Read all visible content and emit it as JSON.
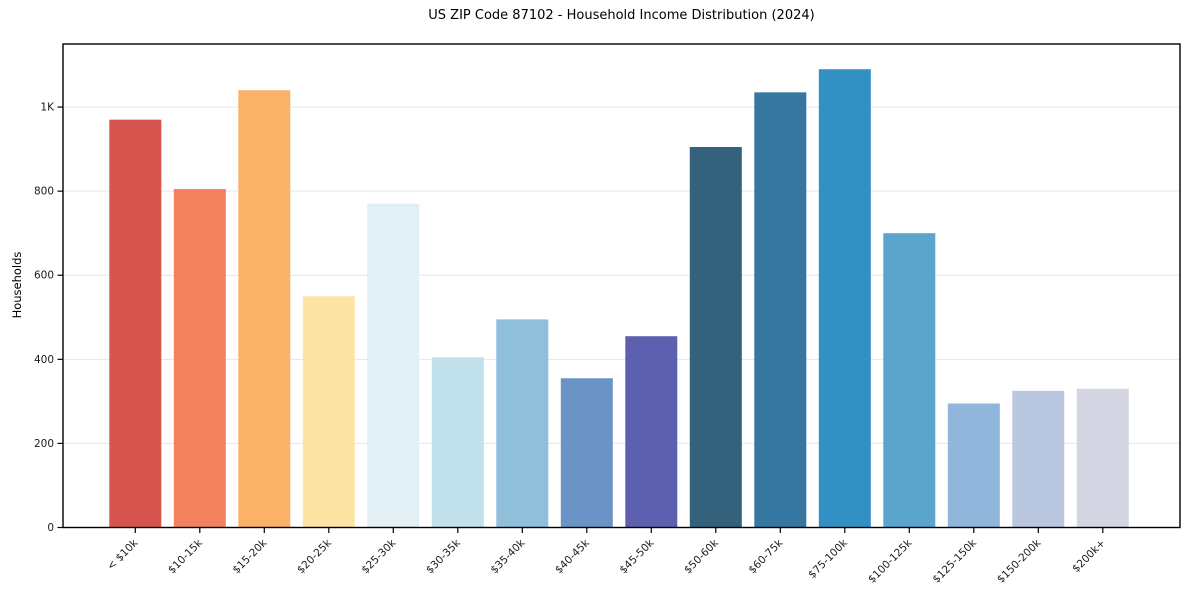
{
  "chart_data": {
    "type": "bar",
    "title": "US ZIP Code 87102 - Household Income Distribution (2024)",
    "xlabel": "",
    "ylabel": "Households",
    "categories": [
      "< $10k",
      "$10-15k",
      "$15-20k",
      "$20-25k",
      "$25-30k",
      "$30-35k",
      "$35-40k",
      "$40-45k",
      "$45-50k",
      "$50-60k",
      "$60-75k",
      "$75-100k",
      "$100-125k",
      "$125-150k",
      "$150-200k",
      "$200k+"
    ],
    "values": [
      970,
      805,
      1040,
      550,
      770,
      405,
      495,
      355,
      455,
      905,
      1035,
      1090,
      700,
      295,
      325,
      330
    ],
    "bar_colors": [
      "#d6564f",
      "#f4815e",
      "#fab269",
      "#fde3a4",
      "#e2eff5",
      "#c1e1ed",
      "#90bfdc",
      "#6b93c5",
      "#5c60ae",
      "#34617b",
      "#3577a1",
      "#3390c4",
      "#5ba4cc",
      "#90b7db",
      "#bac7e1",
      "#d4d6e4"
    ],
    "ytick_values": [
      0,
      200,
      400,
      600,
      800,
      1000
    ],
    "ytick_labels": [
      "0",
      "200",
      "400",
      "600",
      "800",
      "1K"
    ],
    "ylim": [
      0,
      1150
    ],
    "grid": true,
    "legend": null,
    "grid_color": "#e6e6e6",
    "axis_color": "#000000",
    "text_color": "#1a1a1a",
    "background_color": "#ffffff"
  }
}
